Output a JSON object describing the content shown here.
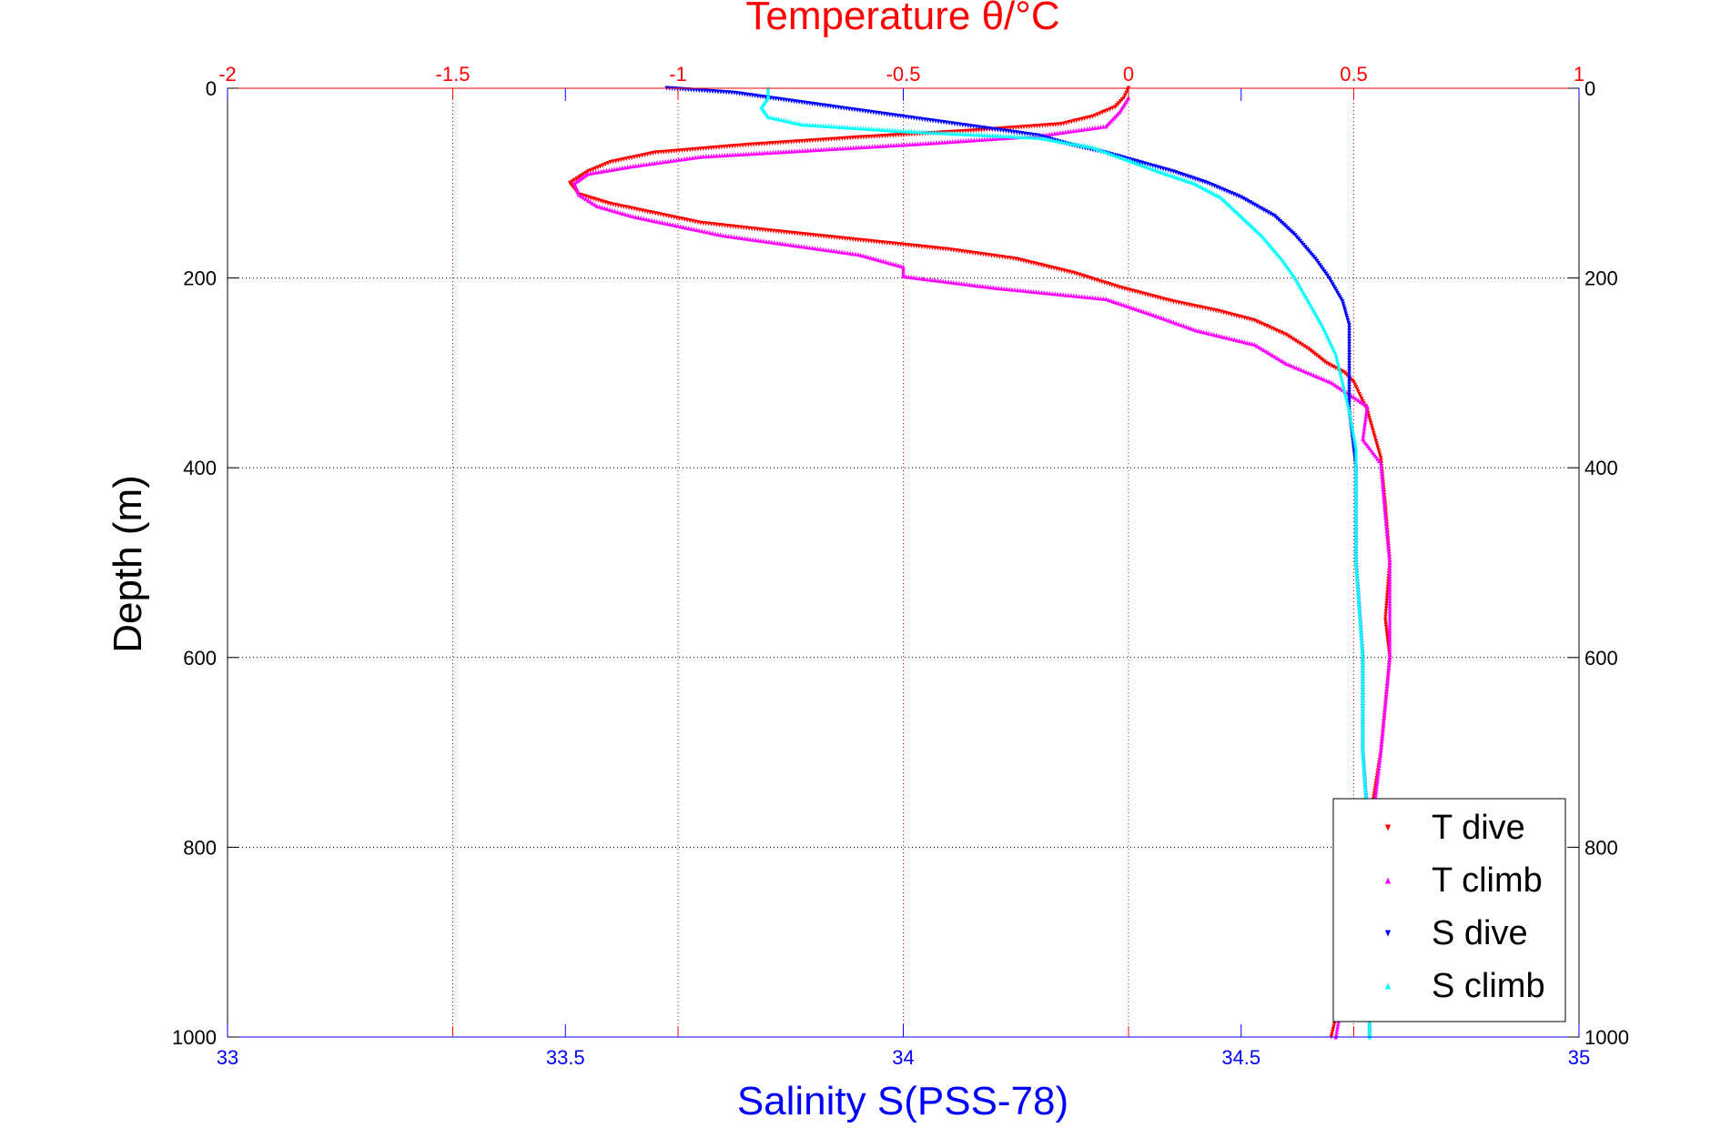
{
  "chart_data": {
    "type": "scatter",
    "title": "Temperature θ/°C",
    "ylabel": "Depth (m)",
    "xlabel": "Salinity S(PSS-78)",
    "temperature_axis": {
      "position": "top",
      "color": "#ff0000",
      "range": [
        -2,
        1
      ],
      "ticks": [
        -2,
        -1.5,
        -1,
        -0.5,
        0,
        0.5,
        1
      ],
      "tick_labels": [
        "-2",
        "-1.5",
        "-1",
        "-0.5",
        "0",
        "0.5",
        "1"
      ]
    },
    "salinity_axis": {
      "position": "bottom",
      "color": "#0000ff",
      "range": [
        33,
        35
      ],
      "ticks": [
        33,
        33.5,
        34,
        34.5,
        35
      ],
      "tick_labels": [
        "33",
        "33.5",
        "34",
        "34.5",
        "35"
      ]
    },
    "depth_axis": {
      "range": [
        0,
        1000
      ],
      "reversed": true,
      "ticks": [
        0,
        200,
        400,
        600,
        800,
        1000
      ],
      "tick_labels": [
        "0",
        "200",
        "400",
        "600",
        "800",
        "1000"
      ]
    },
    "grid": true,
    "legend_position": "bottom-right",
    "series": [
      {
        "name": "T dive",
        "axis": "temperature",
        "marker": "triangle-down",
        "color": "#ff0000",
        "points": [
          [
            0.0,
            0
          ],
          [
            -0.01,
            10
          ],
          [
            -0.03,
            20
          ],
          [
            -0.08,
            30
          ],
          [
            -0.15,
            38
          ],
          [
            -0.35,
            45
          ],
          [
            -0.6,
            52
          ],
          [
            -0.85,
            60
          ],
          [
            -1.05,
            68
          ],
          [
            -1.15,
            78
          ],
          [
            -1.2,
            88
          ],
          [
            -1.24,
            100
          ],
          [
            -1.22,
            112
          ],
          [
            -1.15,
            122
          ],
          [
            -1.05,
            132
          ],
          [
            -0.95,
            142
          ],
          [
            -0.8,
            150
          ],
          [
            -0.6,
            160
          ],
          [
            -0.4,
            170
          ],
          [
            -0.25,
            180
          ],
          [
            -0.12,
            195
          ],
          [
            -0.02,
            210
          ],
          [
            0.1,
            225
          ],
          [
            0.2,
            235
          ],
          [
            0.28,
            245
          ],
          [
            0.35,
            260
          ],
          [
            0.4,
            275
          ],
          [
            0.44,
            290
          ],
          [
            0.48,
            300
          ],
          [
            0.5,
            310
          ],
          [
            0.53,
            340
          ],
          [
            0.56,
            390
          ],
          [
            0.57,
            440
          ],
          [
            0.58,
            500
          ],
          [
            0.57,
            560
          ],
          [
            0.58,
            600
          ],
          [
            0.57,
            650
          ],
          [
            0.56,
            700
          ],
          [
            0.54,
            760
          ],
          [
            0.52,
            800
          ],
          [
            0.5,
            880
          ],
          [
            0.47,
            960
          ],
          [
            0.45,
            1000
          ]
        ]
      },
      {
        "name": "T climb",
        "axis": "temperature",
        "marker": "triangle-up",
        "color": "#ff00ff",
        "points": [
          [
            0.0,
            10
          ],
          [
            -0.02,
            25
          ],
          [
            -0.05,
            40
          ],
          [
            -0.2,
            50
          ],
          [
            -0.45,
            58
          ],
          [
            -0.7,
            65
          ],
          [
            -0.95,
            72
          ],
          [
            -1.1,
            82
          ],
          [
            -1.2,
            90
          ],
          [
            -1.23,
            100
          ],
          [
            -1.22,
            112
          ],
          [
            -1.18,
            124
          ],
          [
            -1.1,
            135
          ],
          [
            -1.0,
            145
          ],
          [
            -0.9,
            155
          ],
          [
            -0.75,
            165
          ],
          [
            -0.6,
            175
          ],
          [
            -0.5,
            188
          ],
          [
            -0.5,
            198
          ],
          [
            -0.3,
            210
          ],
          [
            -0.05,
            222
          ],
          [
            0.05,
            238
          ],
          [
            0.15,
            255
          ],
          [
            0.28,
            270
          ],
          [
            0.35,
            290
          ],
          [
            0.45,
            310
          ],
          [
            0.53,
            335
          ],
          [
            0.52,
            370
          ],
          [
            0.56,
            395
          ],
          [
            0.57,
            450
          ],
          [
            0.58,
            500
          ],
          [
            0.58,
            560
          ],
          [
            0.58,
            600
          ],
          [
            0.57,
            650
          ],
          [
            0.56,
            700
          ],
          [
            0.54,
            780
          ],
          [
            0.51,
            850
          ],
          [
            0.49,
            920
          ],
          [
            0.46,
            1000
          ]
        ]
      },
      {
        "name": "S dive",
        "axis": "salinity",
        "marker": "triangle-down",
        "color": "#0000ff",
        "points": [
          [
            33.65,
            0
          ],
          [
            33.75,
            5
          ],
          [
            33.8,
            10
          ],
          [
            33.85,
            15
          ],
          [
            33.9,
            20
          ],
          [
            34.0,
            30
          ],
          [
            34.1,
            40
          ],
          [
            34.2,
            50
          ],
          [
            34.25,
            60
          ],
          [
            34.3,
            68
          ],
          [
            34.35,
            78
          ],
          [
            34.4,
            88
          ],
          [
            34.45,
            100
          ],
          [
            34.5,
            115
          ],
          [
            34.55,
            135
          ],
          [
            34.58,
            155
          ],
          [
            34.61,
            180
          ],
          [
            34.63,
            200
          ],
          [
            34.65,
            225
          ],
          [
            34.66,
            250
          ],
          [
            34.66,
            290
          ],
          [
            34.66,
            340
          ],
          [
            34.67,
            400
          ],
          [
            34.67,
            500
          ],
          [
            34.68,
            600
          ],
          [
            34.68,
            700
          ],
          [
            34.69,
            800
          ],
          [
            34.69,
            900
          ],
          [
            34.69,
            1000
          ]
        ]
      },
      {
        "name": "S climb",
        "axis": "salinity",
        "marker": "triangle-up",
        "color": "#00ffff",
        "points": [
          [
            33.8,
            0
          ],
          [
            33.8,
            10
          ],
          [
            33.79,
            20
          ],
          [
            33.8,
            30
          ],
          [
            33.85,
            38
          ],
          [
            34.0,
            45
          ],
          [
            34.2,
            52
          ],
          [
            34.28,
            62
          ],
          [
            34.33,
            75
          ],
          [
            34.38,
            88
          ],
          [
            34.43,
            100
          ],
          [
            34.47,
            115
          ],
          [
            34.5,
            135
          ],
          [
            34.53,
            155
          ],
          [
            34.56,
            180
          ],
          [
            34.58,
            200
          ],
          [
            34.6,
            225
          ],
          [
            34.62,
            250
          ],
          [
            34.64,
            280
          ],
          [
            34.65,
            310
          ],
          [
            34.66,
            340
          ],
          [
            34.67,
            380
          ],
          [
            34.67,
            420
          ],
          [
            34.67,
            500
          ],
          [
            34.68,
            600
          ],
          [
            34.68,
            700
          ],
          [
            34.69,
            800
          ],
          [
            34.69,
            900
          ],
          [
            34.69,
            1000
          ]
        ]
      }
    ]
  }
}
